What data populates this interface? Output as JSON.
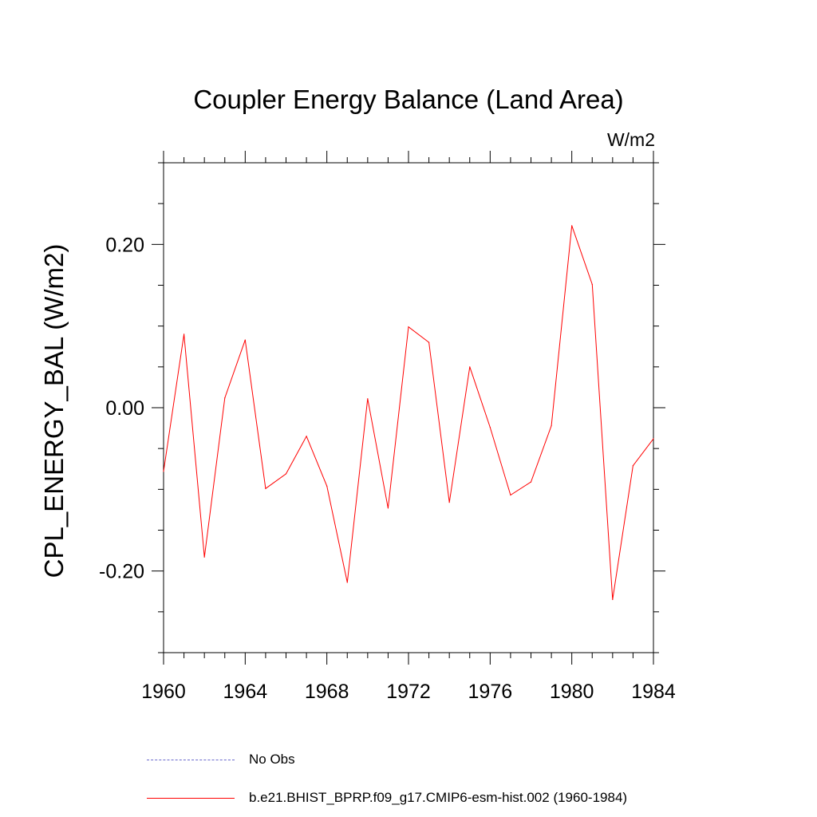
{
  "chart_data": {
    "type": "line",
    "title": "Coupler Energy Balance (Land Area)",
    "units": "W/m2",
    "xlabel": "",
    "ylabel": "CPL_ENERGY_BAL  (W/m2)",
    "xlim": [
      1960,
      1984
    ],
    "ylim": [
      -0.3,
      0.3
    ],
    "x_ticks": [
      1960,
      1964,
      1968,
      1972,
      1976,
      1980,
      1984
    ],
    "x_tick_labels": [
      "1960",
      "1964",
      "1968",
      "1972",
      "1976",
      "1980",
      "1984"
    ],
    "y_ticks": [
      -0.2,
      0.0,
      0.2
    ],
    "y_tick_labels": [
      "-0.20",
      "0.00",
      "0.20"
    ],
    "grid": false,
    "legend_position": "bottom",
    "series": [
      {
        "name": "b.e21.BHIST_BPRP.f09_g17.CMIP6-esm-hist.002 (1960-1984)",
        "color": "#ff0000",
        "style": "solid",
        "x": [
          1960,
          1961,
          1962,
          1963,
          1964,
          1965,
          1966,
          1967,
          1968,
          1969,
          1970,
          1971,
          1972,
          1973,
          1974,
          1975,
          1976,
          1977,
          1978,
          1979,
          1980,
          1981,
          1982,
          1983,
          1984
        ],
        "values": [
          -0.078,
          0.09,
          -0.183,
          0.012,
          0.083,
          -0.099,
          -0.081,
          -0.035,
          -0.096,
          -0.214,
          0.011,
          -0.123,
          0.099,
          0.08,
          -0.116,
          0.05,
          -0.024,
          -0.107,
          -0.091,
          -0.022,
          0.223,
          0.151,
          -0.235,
          -0.071,
          -0.038
        ]
      }
    ],
    "legend": [
      {
        "label": "No Obs",
        "color": "#6a6acd",
        "style": "dashed"
      },
      {
        "label": "b.e21.BHIST_BPRP.f09_g17.CMIP6-esm-hist.002 (1960-1984)",
        "color": "#ff0000",
        "style": "solid"
      }
    ]
  }
}
